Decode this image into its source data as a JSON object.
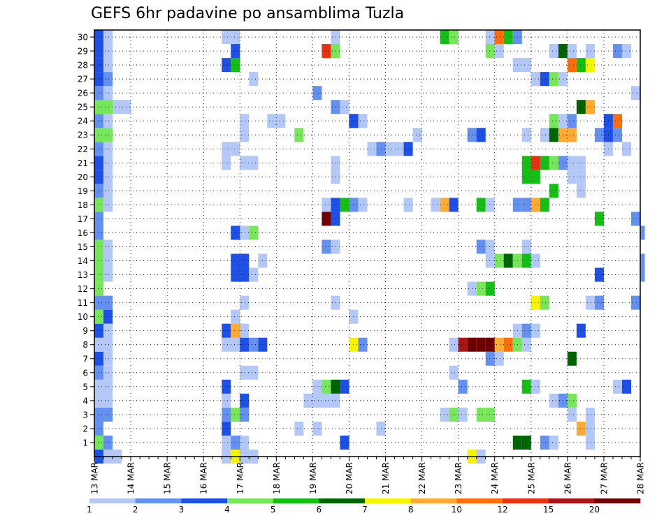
{
  "chart_data": {
    "type": "heatmap",
    "title": "GEFS 6hr padavine po ansamblima Tuzla",
    "xlabel": "",
    "ylabel": "",
    "grid": true,
    "x_tick_labels": [
      "13 MAR",
      "14 MAR",
      "15 MAR",
      "16 MAR",
      "17 MAR",
      "18 MAR",
      "19 MAR",
      "20 MAR",
      "21 MAR",
      "22 MAR",
      "23 MAR",
      "24 MAR",
      "25 MAR",
      "26 MAR",
      "27 MAR",
      "28 MAR"
    ],
    "y_tick_labels": [
      "1",
      "2",
      "3",
      "4",
      "5",
      "6",
      "7",
      "8",
      "9",
      "10",
      "11",
      "12",
      "13",
      "14",
      "15",
      "16",
      "17",
      "18",
      "19",
      "20",
      "21",
      "22",
      "23",
      "24",
      "25",
      "26",
      "27",
      "28",
      "29",
      "30"
    ],
    "x_range_steps": [
      0,
      60
    ],
    "y_range_members": [
      0,
      30
    ],
    "colorbar": {
      "labels": [
        "1",
        "2",
        "3",
        "4",
        "5",
        "6",
        "7",
        "8",
        "10",
        "12",
        "15",
        "20"
      ],
      "colors": [
        "#b4c8f8",
        "#6490f0",
        "#1e50e6",
        "#78e65a",
        "#14be14",
        "#006400",
        "#f5f500",
        "#ffaa32",
        "#ff6e0a",
        "#e63214",
        "#aa1414",
        "#6e0000"
      ]
    },
    "cells": [
      {
        "m": 0,
        "t": 0,
        "c": 2
      },
      {
        "m": 0,
        "t": 1,
        "c": 0
      },
      {
        "m": 0,
        "t": 2,
        "c": 0
      },
      {
        "m": 0,
        "t": 14,
        "c": 0
      },
      {
        "m": 0,
        "t": 15,
        "c": 6
      },
      {
        "m": 0,
        "t": 16,
        "c": 0
      },
      {
        "m": 0,
        "t": 17,
        "c": 0
      },
      {
        "m": 0,
        "t": 41,
        "c": 6
      },
      {
        "m": 0,
        "t": 42,
        "c": 0
      },
      {
        "m": 1,
        "t": 0,
        "c": 3
      },
      {
        "m": 1,
        "t": 1,
        "c": 1
      },
      {
        "m": 1,
        "t": 14,
        "c": 0
      },
      {
        "m": 1,
        "t": 15,
        "c": 1
      },
      {
        "m": 1,
        "t": 16,
        "c": 0
      },
      {
        "m": 1,
        "t": 27,
        "c": 2
      },
      {
        "m": 1,
        "t": 46,
        "c": 5
      },
      {
        "m": 1,
        "t": 47,
        "c": 5
      },
      {
        "m": 1,
        "t": 49,
        "c": 1
      },
      {
        "m": 1,
        "t": 50,
        "c": 0
      },
      {
        "m": 1,
        "t": 54,
        "c": 0
      },
      {
        "m": 2,
        "t": 0,
        "c": 1
      },
      {
        "m": 2,
        "t": 14,
        "c": 2
      },
      {
        "m": 2,
        "t": 22,
        "c": 0
      },
      {
        "m": 2,
        "t": 24,
        "c": 0
      },
      {
        "m": 2,
        "t": 31,
        "c": 0
      },
      {
        "m": 2,
        "t": 53,
        "c": 7
      },
      {
        "m": 2,
        "t": 54,
        "c": 0
      },
      {
        "m": 3,
        "t": 0,
        "c": 1
      },
      {
        "m": 3,
        "t": 1,
        "c": 1
      },
      {
        "m": 3,
        "t": 14,
        "c": 1
      },
      {
        "m": 3,
        "t": 15,
        "c": 3
      },
      {
        "m": 3,
        "t": 16,
        "c": 1
      },
      {
        "m": 3,
        "t": 38,
        "c": 0
      },
      {
        "m": 3,
        "t": 39,
        "c": 3
      },
      {
        "m": 3,
        "t": 40,
        "c": 0
      },
      {
        "m": 3,
        "t": 42,
        "c": 3
      },
      {
        "m": 3,
        "t": 43,
        "c": 3
      },
      {
        "m": 3,
        "t": 52,
        "c": 0
      },
      {
        "m": 3,
        "t": 54,
        "c": 0
      },
      {
        "m": 4,
        "t": 0,
        "c": 0
      },
      {
        "m": 4,
        "t": 1,
        "c": 0
      },
      {
        "m": 4,
        "t": 14,
        "c": 0
      },
      {
        "m": 4,
        "t": 16,
        "c": 2
      },
      {
        "m": 4,
        "t": 23,
        "c": 0
      },
      {
        "m": 4,
        "t": 24,
        "c": 0
      },
      {
        "m": 4,
        "t": 25,
        "c": 0
      },
      {
        "m": 4,
        "t": 26,
        "c": 0
      },
      {
        "m": 4,
        "t": 50,
        "c": 0
      },
      {
        "m": 4,
        "t": 51,
        "c": 1
      },
      {
        "m": 4,
        "t": 52,
        "c": 3
      },
      {
        "m": 5,
        "t": 0,
        "c": 0
      },
      {
        "m": 5,
        "t": 1,
        "c": 0
      },
      {
        "m": 5,
        "t": 14,
        "c": 2
      },
      {
        "m": 5,
        "t": 24,
        "c": 0
      },
      {
        "m": 5,
        "t": 25,
        "c": 3
      },
      {
        "m": 5,
        "t": 26,
        "c": 5
      },
      {
        "m": 5,
        "t": 27,
        "c": 2
      },
      {
        "m": 5,
        "t": 40,
        "c": 1
      },
      {
        "m": 5,
        "t": 47,
        "c": 4
      },
      {
        "m": 5,
        "t": 48,
        "c": 0
      },
      {
        "m": 5,
        "t": 57,
        "c": 0
      },
      {
        "m": 5,
        "t": 58,
        "c": 2
      },
      {
        "m": 6,
        "t": 0,
        "c": 1
      },
      {
        "m": 6,
        "t": 1,
        "c": 0
      },
      {
        "m": 6,
        "t": 16,
        "c": 0
      },
      {
        "m": 6,
        "t": 17,
        "c": 0
      },
      {
        "m": 6,
        "t": 39,
        "c": 0
      },
      {
        "m": 7,
        "t": 0,
        "c": 2
      },
      {
        "m": 7,
        "t": 1,
        "c": 0
      },
      {
        "m": 7,
        "t": 43,
        "c": 1
      },
      {
        "m": 7,
        "t": 44,
        "c": 0
      },
      {
        "m": 7,
        "t": 52,
        "c": 5
      },
      {
        "m": 8,
        "t": 0,
        "c": 0
      },
      {
        "m": 8,
        "t": 1,
        "c": 0
      },
      {
        "m": 8,
        "t": 14,
        "c": 0
      },
      {
        "m": 8,
        "t": 15,
        "c": 0
      },
      {
        "m": 8,
        "t": 16,
        "c": 2
      },
      {
        "m": 8,
        "t": 17,
        "c": 1
      },
      {
        "m": 8,
        "t": 18,
        "c": 2
      },
      {
        "m": 8,
        "t": 28,
        "c": 6
      },
      {
        "m": 8,
        "t": 29,
        "c": 1
      },
      {
        "m": 8,
        "t": 39,
        "c": 0
      },
      {
        "m": 8,
        "t": 40,
        "c": 10
      },
      {
        "m": 8,
        "t": 41,
        "c": 11
      },
      {
        "m": 8,
        "t": 42,
        "c": 11
      },
      {
        "m": 8,
        "t": 43,
        "c": 11
      },
      {
        "m": 8,
        "t": 44,
        "c": 7
      },
      {
        "m": 8,
        "t": 45,
        "c": 8
      },
      {
        "m": 8,
        "t": 46,
        "c": 3
      },
      {
        "m": 8,
        "t": 47,
        "c": 0
      },
      {
        "m": 9,
        "t": 0,
        "c": 2
      },
      {
        "m": 9,
        "t": 1,
        "c": 0
      },
      {
        "m": 9,
        "t": 14,
        "c": 2
      },
      {
        "m": 9,
        "t": 15,
        "c": 7
      },
      {
        "m": 9,
        "t": 16,
        "c": 0
      },
      {
        "m": 9,
        "t": 46,
        "c": 0
      },
      {
        "m": 9,
        "t": 47,
        "c": 1
      },
      {
        "m": 9,
        "t": 48,
        "c": 0
      },
      {
        "m": 9,
        "t": 53,
        "c": 2
      },
      {
        "m": 10,
        "t": 0,
        "c": 3
      },
      {
        "m": 10,
        "t": 1,
        "c": 2
      },
      {
        "m": 10,
        "t": 15,
        "c": 0
      },
      {
        "m": 10,
        "t": 28,
        "c": 0
      },
      {
        "m": 11,
        "t": 0,
        "c": 1
      },
      {
        "m": 11,
        "t": 1,
        "c": 1
      },
      {
        "m": 11,
        "t": 16,
        "c": 0
      },
      {
        "m": 11,
        "t": 26,
        "c": 0
      },
      {
        "m": 11,
        "t": 48,
        "c": 6
      },
      {
        "m": 11,
        "t": 49,
        "c": 3
      },
      {
        "m": 11,
        "t": 54,
        "c": 0
      },
      {
        "m": 11,
        "t": 55,
        "c": 1
      },
      {
        "m": 11,
        "t": 59,
        "c": 1
      },
      {
        "m": 12,
        "t": 0,
        "c": 3
      },
      {
        "m": 12,
        "t": 41,
        "c": 0
      },
      {
        "m": 12,
        "t": 42,
        "c": 3
      },
      {
        "m": 12,
        "t": 43,
        "c": 4
      },
      {
        "m": 13,
        "t": 0,
        "c": 3
      },
      {
        "m": 13,
        "t": 1,
        "c": 0
      },
      {
        "m": 13,
        "t": 15,
        "c": 2
      },
      {
        "m": 13,
        "t": 16,
        "c": 2
      },
      {
        "m": 13,
        "t": 17,
        "c": 0
      },
      {
        "m": 13,
        "t": 55,
        "c": 2
      },
      {
        "m": 13,
        "t": 60,
        "c": 1
      },
      {
        "m": 14,
        "t": 0,
        "c": 3
      },
      {
        "m": 14,
        "t": 1,
        "c": 0
      },
      {
        "m": 14,
        "t": 15,
        "c": 2
      },
      {
        "m": 14,
        "t": 16,
        "c": 2
      },
      {
        "m": 14,
        "t": 18,
        "c": 0
      },
      {
        "m": 14,
        "t": 43,
        "c": 0
      },
      {
        "m": 14,
        "t": 44,
        "c": 3
      },
      {
        "m": 14,
        "t": 45,
        "c": 5
      },
      {
        "m": 14,
        "t": 46,
        "c": 3
      },
      {
        "m": 14,
        "t": 47,
        "c": 4
      },
      {
        "m": 14,
        "t": 48,
        "c": 0
      },
      {
        "m": 14,
        "t": 60,
        "c": 1
      },
      {
        "m": 15,
        "t": 0,
        "c": 3
      },
      {
        "m": 15,
        "t": 1,
        "c": 0
      },
      {
        "m": 15,
        "t": 25,
        "c": 1
      },
      {
        "m": 15,
        "t": 26,
        "c": 0
      },
      {
        "m": 15,
        "t": 42,
        "c": 1
      },
      {
        "m": 15,
        "t": 43,
        "c": 0
      },
      {
        "m": 15,
        "t": 47,
        "c": 0
      },
      {
        "m": 16,
        "t": 0,
        "c": 1
      },
      {
        "m": 16,
        "t": 15,
        "c": 2
      },
      {
        "m": 16,
        "t": 16,
        "c": 0
      },
      {
        "m": 16,
        "t": 17,
        "c": 3
      },
      {
        "m": 16,
        "t": 60,
        "c": 1
      },
      {
        "m": 17,
        "t": 0,
        "c": 1
      },
      {
        "m": 17,
        "t": 25,
        "c": 11
      },
      {
        "m": 17,
        "t": 26,
        "c": 2
      },
      {
        "m": 17,
        "t": 55,
        "c": 4
      },
      {
        "m": 17,
        "t": 59,
        "c": 1
      },
      {
        "m": 18,
        "t": 0,
        "c": 3
      },
      {
        "m": 18,
        "t": 1,
        "c": 0
      },
      {
        "m": 18,
        "t": 25,
        "c": 0
      },
      {
        "m": 18,
        "t": 26,
        "c": 2
      },
      {
        "m": 18,
        "t": 27,
        "c": 4
      },
      {
        "m": 18,
        "t": 28,
        "c": 1
      },
      {
        "m": 18,
        "t": 29,
        "c": 0
      },
      {
        "m": 18,
        "t": 34,
        "c": 0
      },
      {
        "m": 18,
        "t": 37,
        "c": 0
      },
      {
        "m": 18,
        "t": 38,
        "c": 7
      },
      {
        "m": 18,
        "t": 39,
        "c": 2
      },
      {
        "m": 18,
        "t": 42,
        "c": 4
      },
      {
        "m": 18,
        "t": 43,
        "c": 0
      },
      {
        "m": 18,
        "t": 46,
        "c": 1
      },
      {
        "m": 18,
        "t": 47,
        "c": 1
      },
      {
        "m": 18,
        "t": 48,
        "c": 7
      },
      {
        "m": 18,
        "t": 49,
        "c": 4
      },
      {
        "m": 19,
        "t": 0,
        "c": 1
      },
      {
        "m": 19,
        "t": 1,
        "c": 0
      },
      {
        "m": 19,
        "t": 50,
        "c": 4
      },
      {
        "m": 19,
        "t": 53,
        "c": 0
      },
      {
        "m": 20,
        "t": 0,
        "c": 2
      },
      {
        "m": 20,
        "t": 1,
        "c": 0
      },
      {
        "m": 20,
        "t": 26,
        "c": 0
      },
      {
        "m": 20,
        "t": 47,
        "c": 4
      },
      {
        "m": 20,
        "t": 48,
        "c": 4
      },
      {
        "m": 20,
        "t": 52,
        "c": 0
      },
      {
        "m": 20,
        "t": 53,
        "c": 0
      },
      {
        "m": 21,
        "t": 0,
        "c": 2
      },
      {
        "m": 21,
        "t": 1,
        "c": 0
      },
      {
        "m": 21,
        "t": 14,
        "c": 0
      },
      {
        "m": 21,
        "t": 16,
        "c": 0
      },
      {
        "m": 21,
        "t": 17,
        "c": 0
      },
      {
        "m": 21,
        "t": 26,
        "c": 0
      },
      {
        "m": 21,
        "t": 47,
        "c": 4
      },
      {
        "m": 21,
        "t": 48,
        "c": 9
      },
      {
        "m": 21,
        "t": 49,
        "c": 4
      },
      {
        "m": 21,
        "t": 50,
        "c": 3
      },
      {
        "m": 21,
        "t": 51,
        "c": 1
      },
      {
        "m": 21,
        "t": 52,
        "c": 0
      },
      {
        "m": 21,
        "t": 53,
        "c": 0
      },
      {
        "m": 22,
        "t": 0,
        "c": 1
      },
      {
        "m": 22,
        "t": 1,
        "c": 0
      },
      {
        "m": 22,
        "t": 14,
        "c": 0
      },
      {
        "m": 22,
        "t": 15,
        "c": 0
      },
      {
        "m": 22,
        "t": 30,
        "c": 0
      },
      {
        "m": 22,
        "t": 31,
        "c": 1
      },
      {
        "m": 22,
        "t": 32,
        "c": 0
      },
      {
        "m": 22,
        "t": 33,
        "c": 0
      },
      {
        "m": 22,
        "t": 34,
        "c": 2
      },
      {
        "m": 22,
        "t": 56,
        "c": 0
      },
      {
        "m": 22,
        "t": 58,
        "c": 0
      },
      {
        "m": 23,
        "t": 0,
        "c": 3
      },
      {
        "m": 23,
        "t": 1,
        "c": 3
      },
      {
        "m": 23,
        "t": 16,
        "c": 0
      },
      {
        "m": 23,
        "t": 22,
        "c": 3
      },
      {
        "m": 23,
        "t": 35,
        "c": 0
      },
      {
        "m": 23,
        "t": 41,
        "c": 1
      },
      {
        "m": 23,
        "t": 42,
        "c": 2
      },
      {
        "m": 23,
        "t": 47,
        "c": 0
      },
      {
        "m": 23,
        "t": 49,
        "c": 0
      },
      {
        "m": 23,
        "t": 50,
        "c": 5
      },
      {
        "m": 23,
        "t": 51,
        "c": 7
      },
      {
        "m": 23,
        "t": 52,
        "c": 7
      },
      {
        "m": 23,
        "t": 55,
        "c": 1
      },
      {
        "m": 23,
        "t": 56,
        "c": 2
      },
      {
        "m": 23,
        "t": 57,
        "c": 1
      },
      {
        "m": 24,
        "t": 0,
        "c": 1
      },
      {
        "m": 24,
        "t": 1,
        "c": 0
      },
      {
        "m": 24,
        "t": 16,
        "c": 0
      },
      {
        "m": 24,
        "t": 19,
        "c": 0
      },
      {
        "m": 24,
        "t": 20,
        "c": 0
      },
      {
        "m": 24,
        "t": 28,
        "c": 2
      },
      {
        "m": 24,
        "t": 29,
        "c": 0
      },
      {
        "m": 24,
        "t": 50,
        "c": 3
      },
      {
        "m": 24,
        "t": 51,
        "c": 0
      },
      {
        "m": 24,
        "t": 52,
        "c": 1
      },
      {
        "m": 24,
        "t": 56,
        "c": 2
      },
      {
        "m": 24,
        "t": 57,
        "c": 8
      },
      {
        "m": 25,
        "t": 0,
        "c": 3
      },
      {
        "m": 25,
        "t": 1,
        "c": 3
      },
      {
        "m": 25,
        "t": 2,
        "c": 0
      },
      {
        "m": 25,
        "t": 3,
        "c": 0
      },
      {
        "m": 25,
        "t": 26,
        "c": 1
      },
      {
        "m": 25,
        "t": 27,
        "c": 0
      },
      {
        "m": 25,
        "t": 53,
        "c": 5
      },
      {
        "m": 25,
        "t": 54,
        "c": 7
      },
      {
        "m": 26,
        "t": 0,
        "c": 1
      },
      {
        "m": 26,
        "t": 1,
        "c": 0
      },
      {
        "m": 26,
        "t": 24,
        "c": 1
      },
      {
        "m": 26,
        "t": 59,
        "c": 0
      },
      {
        "m": 27,
        "t": 0,
        "c": 2
      },
      {
        "m": 27,
        "t": 1,
        "c": 1
      },
      {
        "m": 27,
        "t": 17,
        "c": 0
      },
      {
        "m": 27,
        "t": 48,
        "c": 0
      },
      {
        "m": 27,
        "t": 49,
        "c": 2
      },
      {
        "m": 27,
        "t": 50,
        "c": 3
      },
      {
        "m": 27,
        "t": 51,
        "c": 0
      },
      {
        "m": 28,
        "t": 0,
        "c": 2
      },
      {
        "m": 28,
        "t": 1,
        "c": 0
      },
      {
        "m": 28,
        "t": 14,
        "c": 2
      },
      {
        "m": 28,
        "t": 15,
        "c": 4
      },
      {
        "m": 28,
        "t": 46,
        "c": 0
      },
      {
        "m": 28,
        "t": 47,
        "c": 0
      },
      {
        "m": 28,
        "t": 52,
        "c": 8
      },
      {
        "m": 28,
        "t": 53,
        "c": 4
      },
      {
        "m": 28,
        "t": 54,
        "c": 6
      },
      {
        "m": 29,
        "t": 0,
        "c": 2
      },
      {
        "m": 29,
        "t": 1,
        "c": 0
      },
      {
        "m": 29,
        "t": 15,
        "c": 2
      },
      {
        "m": 29,
        "t": 25,
        "c": 9
      },
      {
        "m": 29,
        "t": 26,
        "c": 3
      },
      {
        "m": 29,
        "t": 43,
        "c": 3
      },
      {
        "m": 29,
        "t": 44,
        "c": 0
      },
      {
        "m": 29,
        "t": 50,
        "c": 0
      },
      {
        "m": 29,
        "t": 51,
        "c": 5
      },
      {
        "m": 29,
        "t": 52,
        "c": 0
      },
      {
        "m": 29,
        "t": 54,
        "c": 0
      },
      {
        "m": 29,
        "t": 57,
        "c": 1
      },
      {
        "m": 29,
        "t": 58,
        "c": 0
      },
      {
        "m": 30,
        "t": 0,
        "c": 2
      },
      {
        "m": 30,
        "t": 1,
        "c": 0
      },
      {
        "m": 30,
        "t": 14,
        "c": 0
      },
      {
        "m": 30,
        "t": 15,
        "c": 0
      },
      {
        "m": 30,
        "t": 26,
        "c": 0
      },
      {
        "m": 30,
        "t": 38,
        "c": 4
      },
      {
        "m": 30,
        "t": 39,
        "c": 3
      },
      {
        "m": 30,
        "t": 43,
        "c": 0
      },
      {
        "m": 30,
        "t": 44,
        "c": 8
      },
      {
        "m": 30,
        "t": 45,
        "c": 4
      },
      {
        "m": 30,
        "t": 46,
        "c": 1
      }
    ]
  }
}
